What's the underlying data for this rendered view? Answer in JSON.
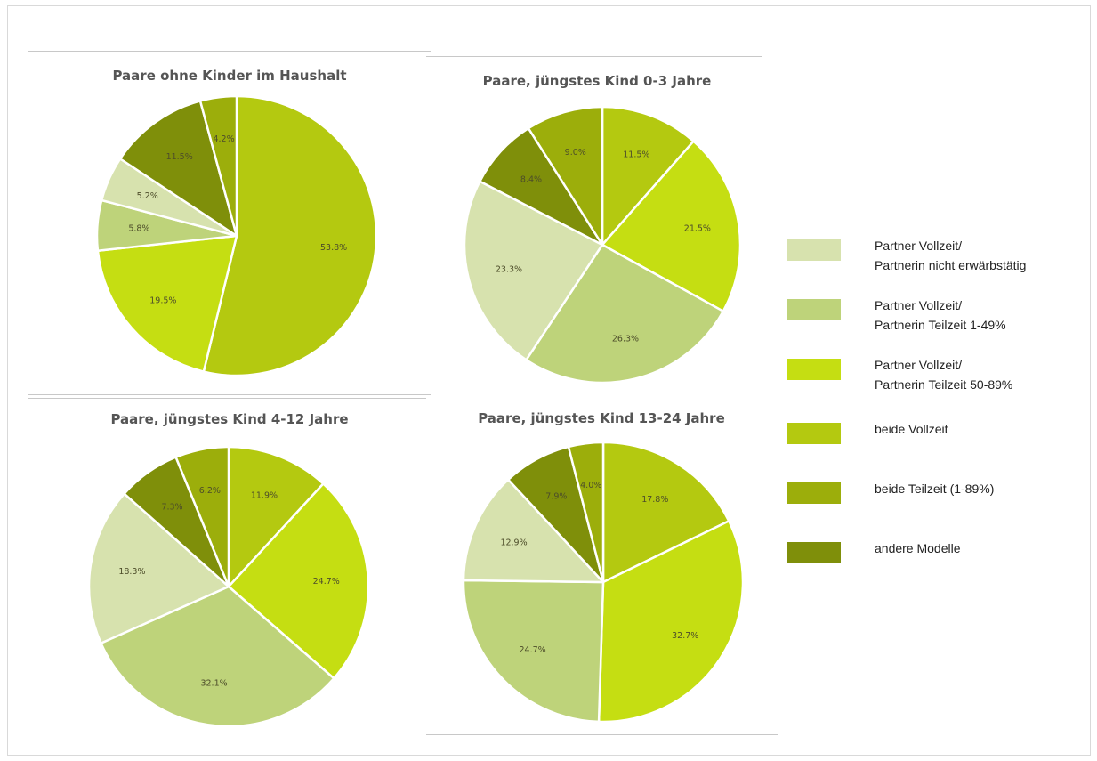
{
  "colors": {
    "partner_vollzeit_nicht_erwerbstaetig": "#d7e2ae",
    "partner_vollzeit_teilzeit_1_49": "#bed37a",
    "partner_vollzeit_teilzeit_50_89": "#c5de12",
    "beide_vollzeit": "#b4c910",
    "beide_teilzeit": "#9cae0b",
    "andere_modelle": "#7f8f0a"
  },
  "legend": [
    {
      "key": "partner_vollzeit_nicht_erwerbstaetig",
      "line1": "Partner Vollzeit/",
      "line2": "Partnerin nicht erwärbstätig"
    },
    {
      "key": "partner_vollzeit_teilzeit_1_49",
      "line1": "Partner Vollzeit/",
      "line2": "Partnerin Teilzeit 1-49%"
    },
    {
      "key": "partner_vollzeit_teilzeit_50_89",
      "line1": "Partner Vollzeit/",
      "line2": "Partnerin Teilzeit 50-89%"
    },
    {
      "key": "beide_vollzeit",
      "line1": "beide Vollzeit",
      "line2": ""
    },
    {
      "key": "beide_teilzeit",
      "line1": "beide Teilzeit (1-89%)",
      "line2": ""
    },
    {
      "key": "andere_modelle",
      "line1": "andere Modelle",
      "line2": ""
    }
  ],
  "chart_data": [
    {
      "type": "pie",
      "title": "Paare ohne Kinder im Haushalt",
      "slices": [
        {
          "key": "beide_vollzeit",
          "value": 53.8,
          "label": "53.8%"
        },
        {
          "key": "partner_vollzeit_teilzeit_50_89",
          "value": 19.5,
          "label": "19.5%"
        },
        {
          "key": "partner_vollzeit_teilzeit_1_49",
          "value": 5.8,
          "label": "5.8%"
        },
        {
          "key": "partner_vollzeit_nicht_erwerbstaetig",
          "value": 5.2,
          "label": "5.2%"
        },
        {
          "key": "andere_modelle",
          "value": 11.5,
          "label": "11.5%"
        },
        {
          "key": "beide_teilzeit",
          "value": 4.2,
          "label": "4.2%"
        }
      ]
    },
    {
      "type": "pie",
      "title": "Paare, jüngstes Kind 0-3 Jahre",
      "slices": [
        {
          "key": "beide_vollzeit",
          "value": 11.5,
          "label": "11.5%"
        },
        {
          "key": "partner_vollzeit_teilzeit_50_89",
          "value": 21.5,
          "label": "21.5%"
        },
        {
          "key": "partner_vollzeit_teilzeit_1_49",
          "value": 26.3,
          "label": "26.3%"
        },
        {
          "key": "partner_vollzeit_nicht_erwerbstaetig",
          "value": 23.3,
          "label": "23.3%"
        },
        {
          "key": "andere_modelle",
          "value": 8.4,
          "label": "8.4%"
        },
        {
          "key": "beide_teilzeit",
          "value": 9.0,
          "label": "9.0%"
        }
      ]
    },
    {
      "type": "pie",
      "title": "Paare, jüngstes Kind 4-12 Jahre",
      "slices": [
        {
          "key": "beide_vollzeit",
          "value": 11.9,
          "label": "11.9%"
        },
        {
          "key": "partner_vollzeit_teilzeit_50_89",
          "value": 24.7,
          "label": "24.7%"
        },
        {
          "key": "partner_vollzeit_teilzeit_1_49",
          "value": 32.1,
          "label": "32.1%"
        },
        {
          "key": "partner_vollzeit_nicht_erwerbstaetig",
          "value": 18.3,
          "label": "18.3%"
        },
        {
          "key": "andere_modelle",
          "value": 7.3,
          "label": "7.3%"
        },
        {
          "key": "beide_teilzeit",
          "value": 6.2,
          "label": "6.2%"
        }
      ]
    },
    {
      "type": "pie",
      "title": "Paare, jüngstes Kind 13-24 Jahre",
      "slices": [
        {
          "key": "beide_vollzeit",
          "value": 17.8,
          "label": "17.8%"
        },
        {
          "key": "partner_vollzeit_teilzeit_50_89",
          "value": 32.7,
          "label": "32.7%"
        },
        {
          "key": "partner_vollzeit_teilzeit_1_49",
          "value": 24.7,
          "label": "24.7%"
        },
        {
          "key": "partner_vollzeit_nicht_erwerbstaetig",
          "value": 12.9,
          "label": "12.9%"
        },
        {
          "key": "andere_modelle",
          "value": 7.9,
          "label": "7.9%"
        },
        {
          "key": "beide_teilzeit",
          "value": 4.0,
          "label": "4.0%"
        }
      ]
    }
  ]
}
